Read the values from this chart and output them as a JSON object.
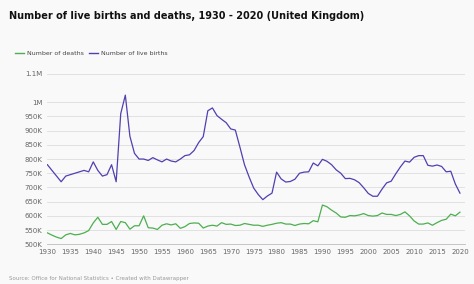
{
  "title": "Number of live births and deaths, 1930 - 2020 (United Kingdom)",
  "source": "Source: Office for National Statistics • Created with Datawrapper",
  "legend": [
    "Number of deaths",
    "Number of live births"
  ],
  "deaths_color": "#4caf50",
  "births_color": "#5040b0",
  "background_color": "#f9f9f9",
  "grid_color": "#dddddd",
  "ylim": [
    500000,
    1120000
  ],
  "xlim": [
    1930,
    2021
  ],
  "xticks": [
    1930,
    1935,
    1940,
    1945,
    1950,
    1955,
    1960,
    1965,
    1970,
    1975,
    1980,
    1985,
    1990,
    1995,
    2000,
    2005,
    2010,
    2015,
    2020
  ],
  "ytick_vals": [
    500000,
    550000,
    600000,
    650000,
    700000,
    750000,
    800000,
    850000,
    900000,
    950000,
    1000000,
    1100000
  ],
  "ytick_labels": [
    "500K",
    "550K",
    "600K",
    "650K",
    "700K",
    "750K",
    "800K",
    "850K",
    "900K",
    "950K",
    "1M",
    "1.1M"
  ],
  "years": [
    1930,
    1931,
    1932,
    1933,
    1934,
    1935,
    1936,
    1937,
    1938,
    1939,
    1940,
    1941,
    1942,
    1943,
    1944,
    1945,
    1946,
    1947,
    1948,
    1949,
    1950,
    1951,
    1952,
    1953,
    1954,
    1955,
    1956,
    1957,
    1958,
    1959,
    1960,
    1961,
    1962,
    1963,
    1964,
    1965,
    1966,
    1967,
    1968,
    1969,
    1970,
    1971,
    1972,
    1973,
    1974,
    1975,
    1976,
    1977,
    1978,
    1979,
    1980,
    1981,
    1982,
    1983,
    1984,
    1985,
    1986,
    1987,
    1988,
    1989,
    1990,
    1991,
    1992,
    1993,
    1994,
    1995,
    1996,
    1997,
    1998,
    1999,
    2000,
    2001,
    2002,
    2003,
    2004,
    2005,
    2006,
    2007,
    2008,
    2009,
    2010,
    2011,
    2012,
    2013,
    2014,
    2015,
    2016,
    2017,
    2018,
    2019,
    2020
  ],
  "births": [
    780000,
    760000,
    740000,
    720000,
    740000,
    745000,
    750000,
    755000,
    760000,
    755000,
    790000,
    760000,
    740000,
    745000,
    780000,
    720000,
    960000,
    1025000,
    880000,
    820000,
    800000,
    800000,
    795000,
    805000,
    797000,
    790000,
    800000,
    793000,
    790000,
    800000,
    812000,
    815000,
    830000,
    858000,
    879000,
    970000,
    980000,
    953000,
    940000,
    928000,
    906000,
    902000,
    842000,
    780000,
    737000,
    698000,
    675000,
    657000,
    670000,
    680000,
    754000,
    730000,
    719000,
    721000,
    729000,
    750000,
    754000,
    755000,
    786000,
    776000,
    799000,
    792000,
    780000,
    762000,
    750000,
    731000,
    732000,
    727000,
    717000,
    699000,
    679000,
    669000,
    669000,
    694000,
    716000,
    722000,
    748000,
    772000,
    793000,
    789000,
    806000,
    812000,
    812000,
    778000,
    775000,
    779000,
    774000,
    755000,
    757000,
    712000,
    680000
  ],
  "deaths": [
    540000,
    532000,
    525000,
    520000,
    533000,
    538000,
    533000,
    535000,
    540000,
    548000,
    575000,
    595000,
    570000,
    570000,
    580000,
    552000,
    580000,
    576000,
    553000,
    565000,
    565000,
    600000,
    558000,
    557000,
    552000,
    567000,
    572000,
    568000,
    572000,
    556000,
    562000,
    573000,
    575000,
    574000,
    557000,
    564000,
    567000,
    564000,
    576000,
    570000,
    571000,
    566000,
    567000,
    573000,
    570000,
    567000,
    567000,
    563000,
    567000,
    570000,
    574000,
    576000,
    571000,
    571000,
    566000,
    571000,
    573000,
    572000,
    583000,
    579000,
    638000,
    632000,
    620000,
    610000,
    596000,
    595000,
    601000,
    600000,
    603000,
    608000,
    601000,
    599000,
    601000,
    610000,
    605000,
    605000,
    601000,
    605000,
    614000,
    600000,
    582000,
    571000,
    571000,
    575000,
    567000,
    576000,
    584000,
    588000,
    606000,
    600000,
    613000
  ]
}
